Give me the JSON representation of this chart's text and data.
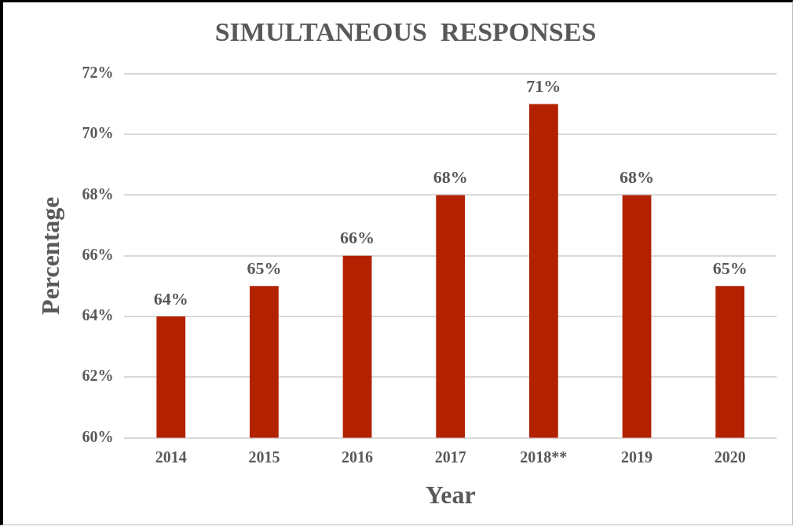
{
  "chart_data": {
    "type": "bar",
    "title": "SIMULTANEOUS  RESPONSES",
    "xlabel": "Year",
    "ylabel": "Percentage",
    "categories": [
      "2014",
      "2015",
      "2016",
      "2017",
      "2018**",
      "2019",
      "2020"
    ],
    "values": [
      64,
      65,
      66,
      68,
      71,
      68,
      65
    ],
    "value_labels": [
      "64%",
      "65%",
      "66%",
      "68%",
      "71%",
      "68%",
      "65%"
    ],
    "color": "#b22200",
    "ylim": [
      60,
      72
    ],
    "yticks": [
      {
        "value": 60,
        "label": "60%"
      },
      {
        "value": 62,
        "label": "62%"
      },
      {
        "value": 64,
        "label": "64%"
      },
      {
        "value": 66,
        "label": "66%"
      },
      {
        "value": 68,
        "label": "68%"
      },
      {
        "value": 70,
        "label": "70%"
      },
      {
        "value": 72,
        "label": "72%"
      }
    ],
    "grid": "y"
  }
}
